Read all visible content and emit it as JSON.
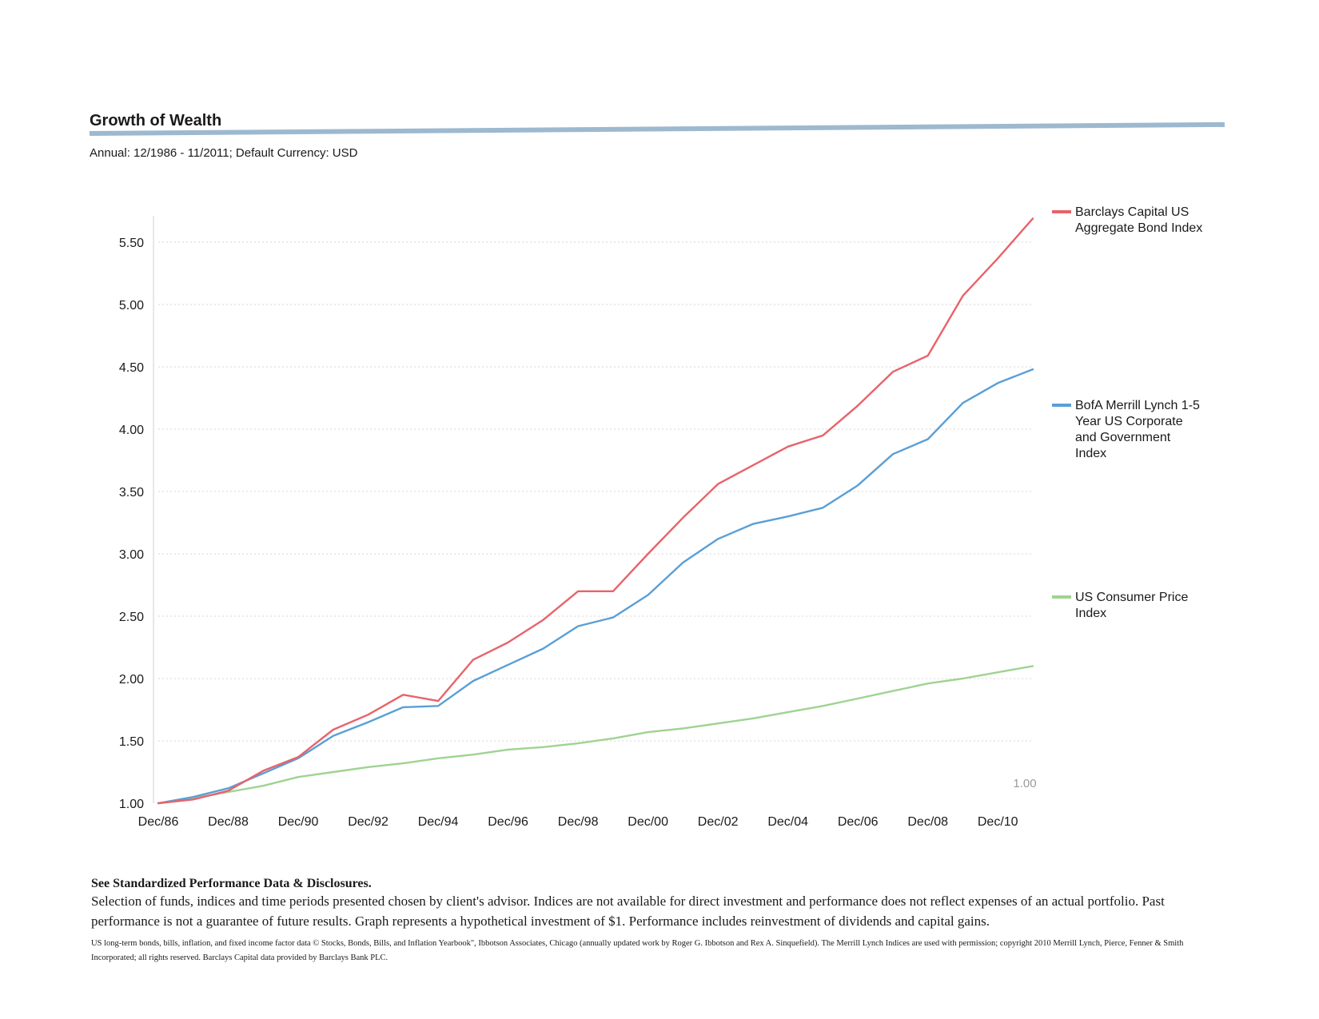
{
  "header": {
    "title": "Growth of Wealth",
    "subtitle": "Annual: 12/1986 - 11/2011; Default Currency: USD"
  },
  "chart_data": {
    "type": "line",
    "title": "",
    "xlabel": "",
    "ylabel": "",
    "ylim": [
      1.0,
      5.5
    ],
    "y_ticks": [
      "1.00",
      "1.50",
      "2.00",
      "2.50",
      "3.00",
      "3.50",
      "4.00",
      "4.50",
      "5.00",
      "5.50"
    ],
    "x_tick_labels": [
      "Dec/86",
      "Dec/88",
      "Dec/90",
      "Dec/92",
      "Dec/94",
      "Dec/96",
      "Dec/98",
      "Dec/00",
      "Dec/02",
      "Dec/04",
      "Dec/06",
      "Dec/08",
      "Dec/10"
    ],
    "x": [
      1986,
      1987,
      1988,
      1989,
      1990,
      1991,
      1992,
      1993,
      1994,
      1995,
      1996,
      1997,
      1998,
      1999,
      2000,
      2001,
      2002,
      2003,
      2004,
      2005,
      2006,
      2007,
      2008,
      2009,
      2010,
      2011
    ],
    "series": [
      {
        "name": "Barclays Capital US Aggregate Bond Index",
        "color": "#e8636a",
        "values": [
          1.0,
          1.03,
          1.1,
          1.26,
          1.37,
          1.59,
          1.71,
          1.87,
          1.82,
          2.15,
          2.29,
          2.47,
          2.7,
          2.7,
          3.0,
          3.29,
          3.56,
          3.71,
          3.86,
          3.95,
          4.19,
          4.46,
          4.59,
          5.07,
          5.37,
          5.69
        ]
      },
      {
        "name": "BofA Merrill Lynch 1-5 Year US Corporate and Government Index",
        "color": "#5a9fd6",
        "values": [
          1.0,
          1.05,
          1.12,
          1.24,
          1.36,
          1.54,
          1.65,
          1.77,
          1.78,
          1.98,
          2.11,
          2.24,
          2.42,
          2.49,
          2.67,
          2.93,
          3.12,
          3.24,
          3.3,
          3.37,
          3.55,
          3.8,
          3.92,
          4.21,
          4.37,
          4.48
        ]
      },
      {
        "name": "US Consumer Price Index",
        "color": "#9fd392",
        "values": [
          1.0,
          1.04,
          1.09,
          1.14,
          1.21,
          1.25,
          1.29,
          1.32,
          1.36,
          1.39,
          1.43,
          1.45,
          1.48,
          1.52,
          1.57,
          1.6,
          1.64,
          1.68,
          1.73,
          1.78,
          1.84,
          1.9,
          1.96,
          2.0,
          2.05,
          2.1
        ]
      }
    ],
    "end_annotation": "1.00",
    "grid": "horizontal dotted",
    "legend_position": "right"
  },
  "legend_lines": [
    [
      "Barclays Capital US",
      "Aggregate Bond Index"
    ],
    [
      "BofA Merrill Lynch 1-5",
      "Year US Corporate",
      "and Government",
      "Index"
    ],
    [
      "US Consumer Price",
      "Index"
    ]
  ],
  "disclosures": {
    "heading": "See Standardized Performance Data & Disclosures.",
    "body": "Selection of funds, indices and time periods presented chosen by client's advisor. Indices are not available for direct investment and performance does not reflect expenses of an actual portfolio. Past performance is not a guarantee of future results. Graph represents a hypothetical investment of $1. Performance includes reinvestment of dividends and capital gains.",
    "fine_print": "US long-term bonds, bills, inflation, and fixed income factor data © Stocks, Bonds, Bills, and Inflation Yearbook\", Ibbotson Associates, Chicago (annually updated work by Roger G. Ibbotson and Rex A. Sinquefield). The Merrill Lynch Indices are used with permission; copyright 2010 Merrill Lynch, Pierce, Fenner & Smith Incorporated; all rights reserved. Barclays Capital data provided by Barclays Bank PLC."
  }
}
